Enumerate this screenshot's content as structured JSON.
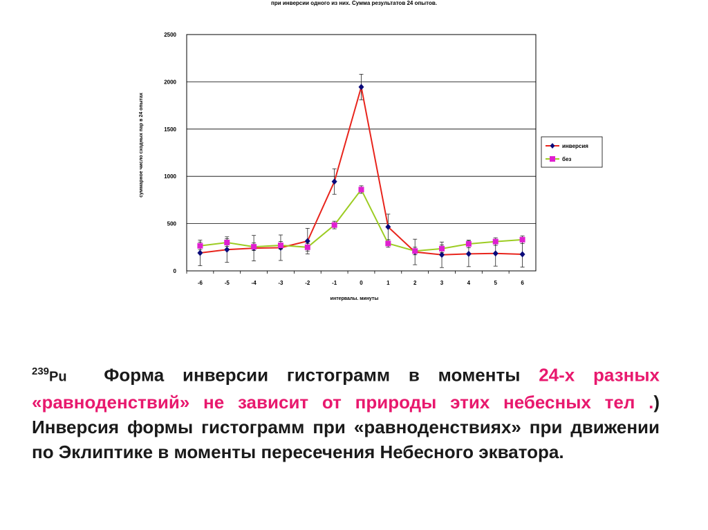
{
  "chart_data": {
    "type": "line",
    "title": "при инверсии одного из них. Сумма результатов 24 опытов.",
    "xlabel": "интервалы. минуты",
    "ylabel": "суммарное число сходных пар в 24 опытах",
    "categories": [
      "-6",
      "-5",
      "-4",
      "-3",
      "-2",
      "-1",
      "0",
      "1",
      "2",
      "3",
      "4",
      "5",
      "6"
    ],
    "ylim": [
      0,
      2500
    ],
    "yticks": [
      "0",
      "500",
      "1000",
      "1500",
      "2000",
      "2500"
    ],
    "grid": true,
    "legend_position": "right",
    "series": [
      {
        "name": "инверсия",
        "color": "#e8241c",
        "marker_color": "#0a0a7a",
        "marker": "diamond",
        "values": [
          190,
          225,
          240,
          245,
          315,
          945,
          1945,
          465,
          200,
          170,
          180,
          185,
          175
        ],
        "errors": [
          135,
          135,
          135,
          135,
          135,
          135,
          135,
          135,
          135,
          135,
          135,
          135,
          135
        ]
      },
      {
        "name": "без",
        "color": "#9ccc22",
        "marker_color": "#e020d0",
        "marker": "square",
        "values": [
          265,
          300,
          255,
          270,
          250,
          485,
          860,
          290,
          210,
          235,
          285,
          310,
          330
        ],
        "errors": [
          40,
          40,
          40,
          40,
          40,
          40,
          40,
          40,
          40,
          40,
          40,
          40,
          40
        ]
      }
    ]
  },
  "caption": {
    "isotope_mass": "239",
    "isotope_symbol": "Pu",
    "text_1": "Форма инверсии гистограмм в моменты ",
    "text_pink_1": "24-х разных «равноденствий» не зависит от природы этих небесных тел .",
    "text_2": ") Инверсия формы гистограмм при «равноденствиях» при движении по Эклиптике в моменты пересечения Небесного экватора."
  }
}
